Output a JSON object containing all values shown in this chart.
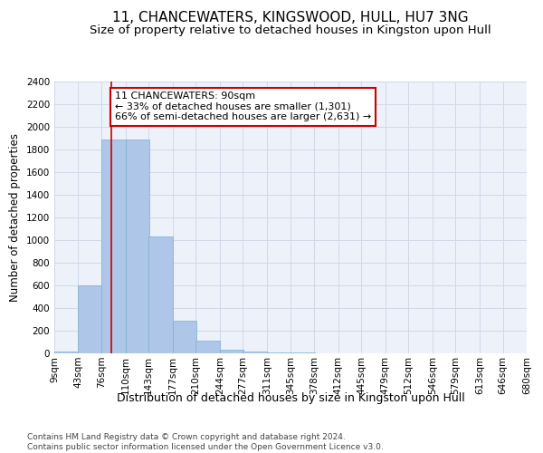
{
  "title": "11, CHANCEWATERS, KINGSWOOD, HULL, HU7 3NG",
  "subtitle": "Size of property relative to detached houses in Kingston upon Hull",
  "xlabel": "Distribution of detached houses by size in Kingston upon Hull",
  "ylabel": "Number of detached properties",
  "footer_line1": "Contains HM Land Registry data © Crown copyright and database right 2024.",
  "footer_line2": "Contains public sector information licensed under the Open Government Licence v3.0.",
  "bar_edges": [
    9,
    43,
    76,
    110,
    143,
    177,
    210,
    244,
    277,
    311,
    345,
    378,
    412,
    445,
    479,
    512,
    546,
    579,
    613,
    646,
    680
  ],
  "bar_values": [
    15,
    600,
    1890,
    1890,
    1030,
    285,
    110,
    35,
    18,
    10,
    5,
    3,
    2,
    1,
    1,
    0,
    0,
    0,
    0,
    0
  ],
  "bar_color": "#aec6e8",
  "bar_edgecolor": "#7aafd4",
  "property_size": 90,
  "vline_color": "#cc0000",
  "annotation_text": "11 CHANCEWATERS: 90sqm\n← 33% of detached houses are smaller (1,301)\n66% of semi-detached houses are larger (2,631) →",
  "annotation_box_color": "#cc0000",
  "annotation_facecolor": "white",
  "ylim": [
    0,
    2400
  ],
  "yticks": [
    0,
    200,
    400,
    600,
    800,
    1000,
    1200,
    1400,
    1600,
    1800,
    2000,
    2200,
    2400
  ],
  "grid_color": "#d0d8e8",
  "bg_color": "#edf2fa",
  "title_fontsize": 11,
  "subtitle_fontsize": 9.5,
  "xlabel_fontsize": 9,
  "ylabel_fontsize": 8.5,
  "tick_fontsize": 7.5,
  "footer_fontsize": 6.5,
  "ann_fontsize": 8
}
